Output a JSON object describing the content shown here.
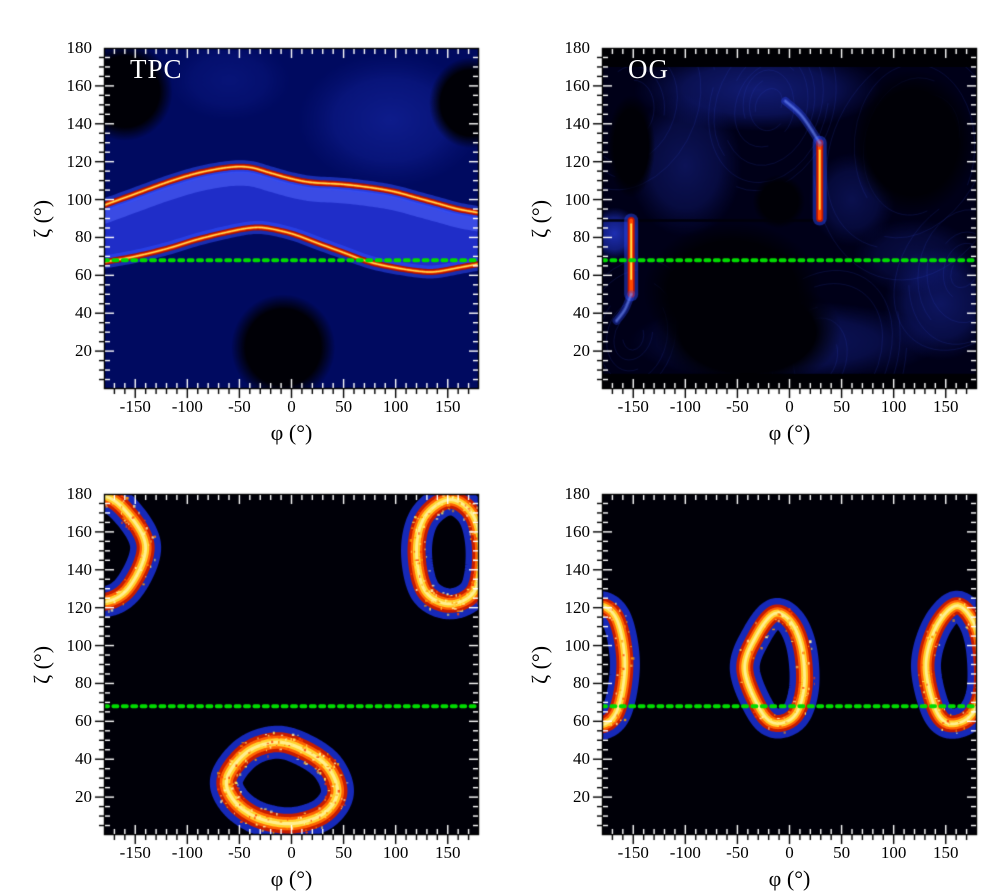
{
  "reference_line": {
    "zeta": 68,
    "color": "#00dc00",
    "style": "dotted"
  },
  "axes": {
    "x": {
      "label": "φ (°)",
      "range": [
        -180,
        180
      ],
      "major_ticks": [
        -150,
        -100,
        -50,
        0,
        50,
        100,
        150
      ],
      "tick_labels": [
        "-150",
        "-100",
        "-50",
        "0",
        "50",
        "100",
        "150"
      ],
      "minor_step": 10
    },
    "y": {
      "label": "ζ (°)",
      "range": [
        0,
        180
      ],
      "major_ticks": [
        20,
        40,
        60,
        80,
        100,
        120,
        140,
        160,
        180
      ],
      "tick_labels": [
        "20",
        "40",
        "60",
        "80",
        "100",
        "120",
        "140",
        "160",
        "180"
      ],
      "minor_step": 5
    }
  },
  "chart_data": [
    {
      "type": "heatmap",
      "id": "top-left",
      "title": "TPC",
      "xlabel": "φ (°)",
      "ylabel": "ζ (°)",
      "xrange": [
        -180,
        180
      ],
      "yrange": [
        0,
        180
      ],
      "background": "#000a60",
      "washes": [
        [
          95,
          142,
          90,
          36,
          0.4
        ],
        [
          -60,
          163,
          60,
          22,
          0.22
        ]
      ],
      "dark_blobs": [
        [
          -160,
          157,
          46,
          26
        ],
        [
          172,
          151,
          40,
          24
        ],
        [
          -8,
          22,
          50,
          28
        ]
      ],
      "band": {
        "fill_color": "#1f2dc8",
        "highlight_color": "rgba(85,105,255,0.50)",
        "upper_ridge": [
          [
            -180,
            97
          ],
          [
            -150,
            103
          ],
          [
            -120,
            109
          ],
          [
            -90,
            114
          ],
          [
            -60,
            117
          ],
          [
            -40,
            117
          ],
          [
            -20,
            114
          ],
          [
            0,
            111
          ],
          [
            20,
            109
          ],
          [
            50,
            108
          ],
          [
            80,
            106
          ],
          [
            100,
            104
          ],
          [
            120,
            101
          ],
          [
            140,
            98
          ],
          [
            160,
            95
          ],
          [
            180,
            93
          ]
        ],
        "lower_ridge": [
          [
            -180,
            67
          ],
          [
            -150,
            70
          ],
          [
            -120,
            74
          ],
          [
            -90,
            79
          ],
          [
            -60,
            83
          ],
          [
            -40,
            85
          ],
          [
            -25,
            85
          ],
          [
            0,
            82
          ],
          [
            25,
            77
          ],
          [
            50,
            72
          ],
          [
            75,
            67
          ],
          [
            100,
            64
          ],
          [
            125,
            62
          ],
          [
            140,
            62
          ],
          [
            160,
            64
          ],
          [
            180,
            66
          ]
        ]
      },
      "green_line_zeta": 68
    },
    {
      "type": "heatmap",
      "id": "top-right",
      "title": "OG",
      "xlabel": "φ (°)",
      "ylabel": "ζ (°)",
      "xrange": [
        -180,
        180
      ],
      "yrange": [
        0,
        180
      ],
      "background": "#000018",
      "washes": [
        [
          -30,
          158,
          120,
          22,
          0.5
        ],
        [
          -100,
          118,
          55,
          38,
          0.35
        ],
        [
          -5,
          25,
          150,
          22,
          0.4
        ],
        [
          145,
          45,
          55,
          30,
          0.4
        ],
        [
          -168,
          82,
          24,
          14,
          0.85
        ],
        [
          60,
          100,
          42,
          25,
          0.3
        ],
        [
          120,
          70,
          60,
          20,
          0.25
        ]
      ],
      "filaments": [
        [
          -20,
          150,
          12,
          62,
          9
        ],
        [
          120,
          128,
          30,
          95,
          8
        ],
        [
          -150,
          28,
          10,
          55,
          7
        ],
        [
          25,
          16,
          20,
          85,
          8
        ],
        [
          168,
          62,
          12,
          60,
          7
        ],
        [
          -150,
          148,
          20,
          70,
          6
        ]
      ],
      "dark_blobs": [
        [
          -152,
          128,
          23,
          27
        ],
        [
          118,
          130,
          60,
          38
        ],
        [
          -10,
          99,
          25,
          14
        ],
        [
          -55,
          52,
          85,
          36
        ],
        [
          -40,
          30,
          90,
          30
        ]
      ],
      "black_strips": [
        [
          170,
          180
        ],
        [
          0,
          8
        ]
      ],
      "step_line": {
        "zeta": 89,
        "phi_range": [
          -180,
          28
        ]
      },
      "streaks": [
        {
          "phi": -152,
          "z0": 50,
          "z1": 89,
          "core": [
            58,
            87
          ],
          "tail": [
            [
              -152,
              50
            ],
            [
              -158,
              42
            ],
            [
              -166,
              36
            ]
          ]
        },
        {
          "phi": 29,
          "z0": 90,
          "z1": 130,
          "core": [
            95,
            126
          ],
          "tail": [
            [
              29,
              130
            ],
            [
              12,
              144
            ],
            [
              -4,
              152
            ]
          ]
        }
      ],
      "green_line_zeta": 68
    },
    {
      "type": "heatmap",
      "id": "bottom-left",
      "title": "",
      "xlabel": "φ (°)",
      "ylabel": "ζ (°)",
      "xrange": [
        -180,
        180
      ],
      "yrange": [
        0,
        180
      ],
      "background": "#000008",
      "rings": [
        {
          "outline": [
            [
              -183,
              179
            ],
            [
              -159,
              171
            ],
            [
              -140,
              152
            ],
            [
              -157,
              130
            ],
            [
              -183,
              123
            ],
            [
              -209,
              130
            ],
            [
              -226,
              152
            ],
            [
              -209,
              171
            ]
          ],
          "width": 18,
          "noise": 170
        },
        {
          "outline": [
            [
              152,
              177
            ],
            [
              174,
              169
            ],
            [
              182,
              150
            ],
            [
              176,
              129
            ],
            [
              152,
              122
            ],
            [
              128,
              129
            ],
            [
              120,
              150
            ],
            [
              128,
              168
            ]
          ],
          "width": 18,
          "noise": 170
        },
        {
          "outline": [
            [
              -13,
              49
            ],
            [
              15,
              44
            ],
            [
              36,
              35
            ],
            [
              44,
              22
            ],
            [
              30,
              11
            ],
            [
              0,
              6
            ],
            [
              -32,
              9
            ],
            [
              -55,
              18
            ],
            [
              -62,
              30
            ],
            [
              -42,
              44
            ]
          ],
          "width": 20,
          "noise": 220
        }
      ],
      "green_line_zeta": 68
    },
    {
      "type": "heatmap",
      "id": "bottom-right",
      "title": "",
      "xlabel": "φ (°)",
      "ylabel": "ζ (°)",
      "xrange": [
        -180,
        180
      ],
      "yrange": [
        0,
        180
      ],
      "background": "#000008",
      "rings": [
        {
          "outline": [
            [
              -184,
              121
            ],
            [
              -166,
              114
            ],
            [
              -158,
              90
            ],
            [
              -166,
              65
            ],
            [
              -184,
              58
            ],
            [
              -203,
              66
            ],
            [
              -210,
              90
            ],
            [
              -202,
              113
            ]
          ],
          "width": 17,
          "noise": 80
        },
        {
          "outline": [
            [
              -14,
              117
            ],
            [
              2,
              112
            ],
            [
              12,
              98
            ],
            [
              14,
              78
            ],
            [
              5,
              63
            ],
            [
              -14,
              59
            ],
            [
              -29,
              67
            ],
            [
              -43,
              88
            ],
            [
              -31,
              106
            ]
          ],
          "width": 17,
          "noise": 80
        },
        {
          "outline": [
            [
              160,
              121
            ],
            [
              176,
              113
            ],
            [
              184,
              97
            ],
            [
              184,
              75
            ],
            [
              172,
              62
            ],
            [
              152,
              59
            ],
            [
              139,
              68
            ],
            [
              131,
              90
            ],
            [
              141,
              110
            ]
          ],
          "width": 17,
          "noise": 80
        }
      ],
      "green_line_zeta": 68
    }
  ]
}
